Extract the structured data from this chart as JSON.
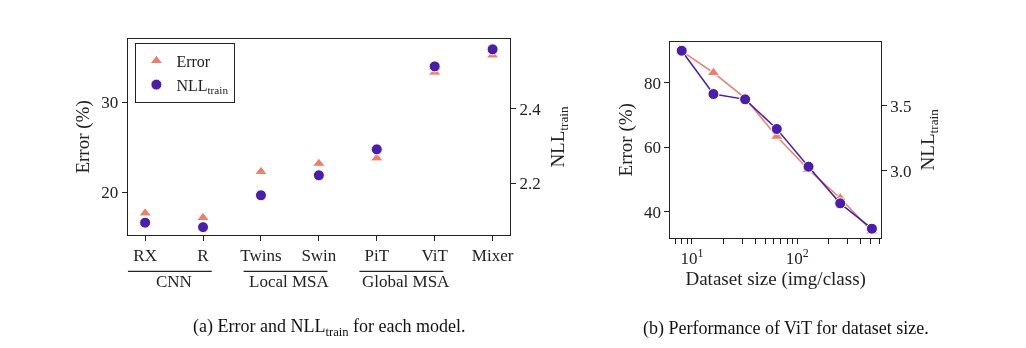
{
  "chart_data": [
    {
      "type": "scatter",
      "categories": [
        "RX",
        "R",
        "Twins",
        "Swin",
        "PiT",
        "ViT",
        "Mixer"
      ],
      "series": [
        {
          "name": "Error",
          "color": "#ea7f6a",
          "marker": "triangle",
          "values": [
            17.7,
            17.2,
            22.3,
            23.2,
            23.8,
            33.3,
            35.2
          ]
        },
        {
          "name": "NLL$_{train}$",
          "color": "#4a1fa6",
          "marker": "circle",
          "axis": "y2",
          "values": [
            2.093,
            2.081,
            2.167,
            2.221,
            2.291,
            2.515,
            2.561
          ]
        }
      ],
      "ylabel": "Error (%)",
      "y2label": "NLL$_{train}$",
      "ylim": [
        15.3,
        37.0
      ],
      "yticks": [
        20,
        30
      ],
      "y2lim": [
        2.06,
        2.589
      ],
      "y2ticks": [
        2.2,
        2.4
      ],
      "legend": "top left",
      "annotations": [
        "CNN",
        "Local MSA",
        "Global MSA",
        "(a) Error and NLL$_{train}$ for each model."
      ]
    },
    {
      "type": "line",
      "x": [
        8,
        16,
        32,
        64,
        128,
        256,
        512
      ],
      "series": [
        {
          "color": "#ea7f6a",
          "marker": "triangle",
          "values": [
            89.8,
            83.1,
            75.2,
            63.3,
            53.0,
            44.2,
            33.9
          ]
        },
        {
          "color": "#4a1fa6",
          "marker": "circle",
          "axis": "y2",
          "values": [
            3.923,
            3.59,
            3.549,
            3.321,
            3.031,
            2.749,
            2.554
          ]
        }
      ],
      "xlabel": "Dataset size (img/class)",
      "ylabel": "Error (%)",
      "y2label": "NLL$_{train}$",
      "log": "x",
      "xlim": [
        6.25,
        624
      ],
      "xticks": [
        {
          "value": 7,
          "label": null
        },
        {
          "value": 8,
          "label": null
        },
        {
          "value": 9,
          "label": null
        },
        {
          "value": 10,
          "label": "10$^{1}$"
        },
        {
          "value": 20,
          "label": null
        },
        {
          "value": 30,
          "label": null
        },
        {
          "value": 40,
          "label": null
        },
        {
          "value": 50,
          "label": null
        },
        {
          "value": 60,
          "label": null
        },
        {
          "value": 70,
          "label": null
        },
        {
          "value": 80,
          "label": null
        },
        {
          "value": 90,
          "label": null
        },
        {
          "value": 100,
          "label": "10$^{2}$"
        },
        {
          "value": 200,
          "label": null
        },
        {
          "value": 300,
          "label": null
        },
        {
          "value": 400,
          "label": null
        },
        {
          "value": 500,
          "label": null
        },
        {
          "value": 600,
          "label": null
        }
      ],
      "ylim": [
        31.9,
        92.7
      ],
      "yticks": [
        40,
        60,
        80
      ],
      "y2lim": [
        2.485,
        3.992
      ],
      "y2ticks": [
        {
          "value": 3.0,
          "label": "3.0"
        },
        3.5
      ],
      "legend": false,
      "annotations": [
        "(b) Performance of ViT for dataset size."
      ]
    }
  ]
}
